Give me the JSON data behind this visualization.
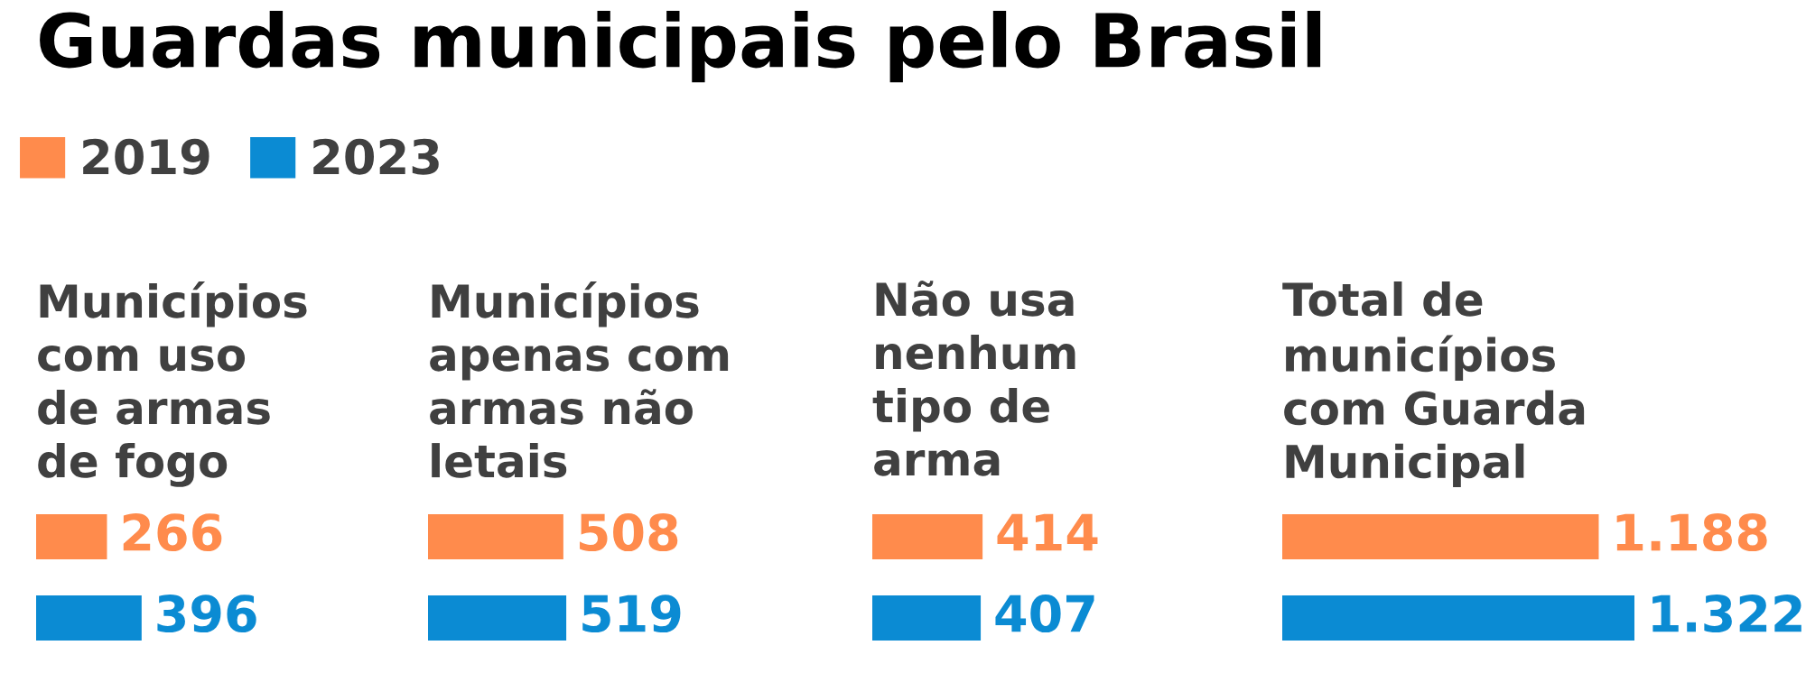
{
  "chart_data": [
    {
      "type": "other",
      "title": "Guardas municipais pelo Brasil"
    },
    {
      "type": "bar",
      "orientation": "horizontal",
      "title": "Municípios\ncom uso\nde armas\nde fogo",
      "categories": [
        null
      ],
      "series": [
        {
          "name": "2019",
          "color": "#ff8b4c",
          "values": [
            266
          ]
        },
        {
          "name": "2023",
          "color": "#0b8bd3",
          "values": [
            396
          ]
        }
      ],
      "data_labels": true,
      "legend": "top",
      "tick_labels": false
    },
    {
      "type": "bar",
      "orientation": "horizontal",
      "title": "Municípios\napenas com\narmas não\nletais",
      "categories": [
        null
      ],
      "series": [
        {
          "name": "2019",
          "color": "#ff8b4c",
          "values": [
            508
          ]
        },
        {
          "name": "2023",
          "color": "#0b8bd3",
          "values": [
            519
          ]
        }
      ],
      "data_labels": true,
      "tick_labels": false
    },
    {
      "type": "bar",
      "orientation": "horizontal",
      "title": "Não usa\nnenhum\ntipo de\narma",
      "categories": [
        null
      ],
      "series": [
        {
          "name": "2019",
          "color": "#ff8b4c",
          "values": [
            414
          ]
        },
        {
          "name": "2023",
          "color": "#0b8bd3",
          "values": [
            407
          ]
        }
      ],
      "data_labels": true,
      "tick_labels": false
    },
    {
      "type": "bar",
      "orientation": "horizontal",
      "title": "Total de\nmunicípios\ncom Guarda\nMunicipal",
      "categories": [
        null
      ],
      "series": [
        {
          "name": "2019",
          "color": "#ff8b4c",
          "values": [
            1188
          ],
          "value_labels": [
            "1.188"
          ]
        },
        {
          "name": "2023",
          "color": "#0b8bd3",
          "values": [
            1322
          ],
          "value_labels": [
            "1.322"
          ]
        }
      ],
      "tick_labels": false
    }
  ]
}
